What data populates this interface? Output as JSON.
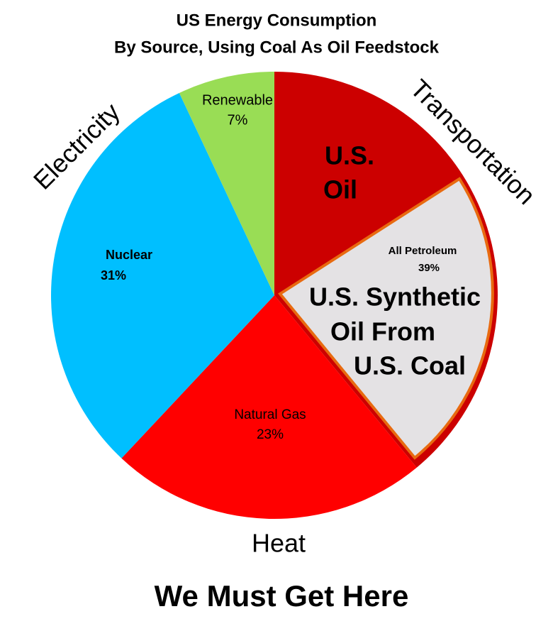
{
  "chart_data": {
    "type": "pie",
    "title": "US Energy Consumption",
    "subtitle": "By Source, Using Coal As Oil Feedstock",
    "categories": [
      "All Petroleum",
      "Natural Gas",
      "Nuclear",
      "Renewable"
    ],
    "values": [
      39,
      23,
      31,
      7
    ],
    "value_labels": [
      "39%",
      "23%",
      "31%",
      "7%"
    ],
    "colors": [
      "#cc0000",
      "#ff0000",
      "#00bfff",
      "#99dd55"
    ],
    "annotations": [
      "Electricity",
      "Transportation",
      "Heat",
      "U.S.",
      "Oil",
      "U.S. Synthetic",
      "Oil From",
      "U.S. Coal",
      "We Must Get Here"
    ]
  }
}
